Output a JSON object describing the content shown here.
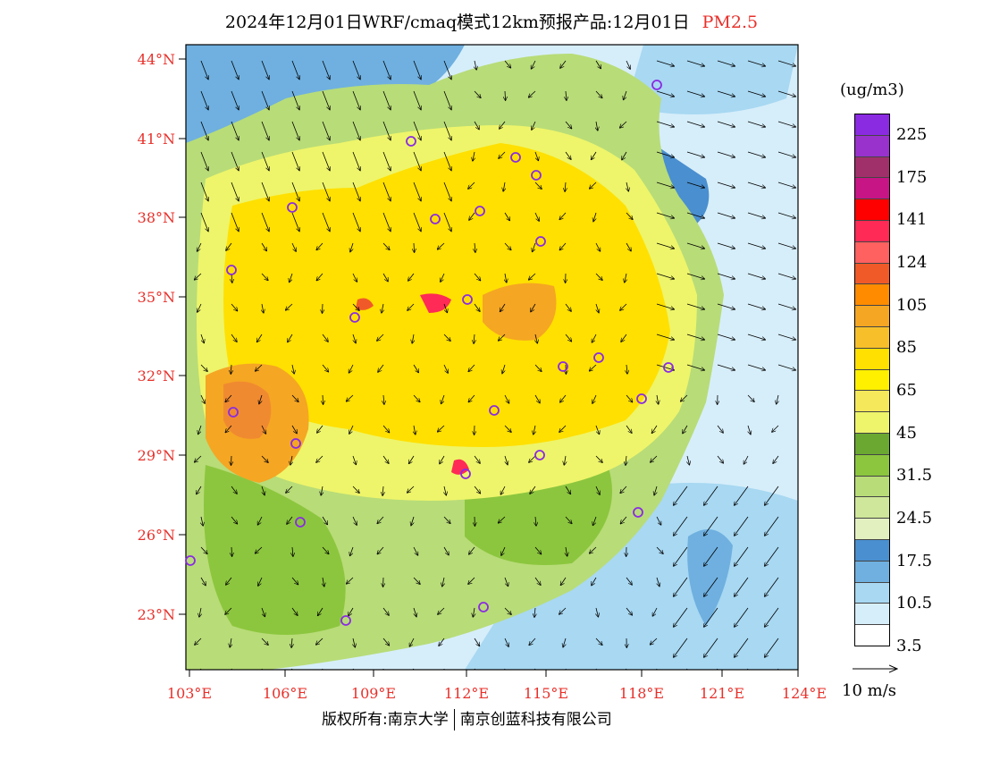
{
  "title": {
    "main": "2024年12月01日WRF/cmaq模式12km预报产品:12月01日",
    "pollutant": "PM2.5"
  },
  "axes": {
    "lat_labels": [
      "44°N",
      "41°N",
      "38°N",
      "35°N",
      "32°N",
      "29°N",
      "26°N",
      "23°N"
    ],
    "lon_labels": [
      "103°E",
      "106°E",
      "109°E",
      "112°E",
      "115°E",
      "118°E",
      "121°E",
      "124°E"
    ]
  },
  "legend": {
    "unit": "(ug/m3)",
    "labels": [
      "225",
      "175",
      "141",
      "124",
      "105",
      "85",
      "65",
      "45",
      "31.5",
      "24.5",
      "17.5",
      "10.5",
      "3.5"
    ],
    "colors": [
      "#8a2be2",
      "#9932cc",
      "#a0306a",
      "#c71585",
      "#ff0000",
      "#ff2a55",
      "#ff6060",
      "#f05a28",
      "#ff8c00",
      "#f5a623",
      "#f7c02a",
      "#ffe000",
      "#fff000",
      "#f5e85a",
      "#eef56a",
      "#6aa832",
      "#8cc63e",
      "#b8dc78",
      "#cfe79a",
      "#e2f0c0",
      "#4a8fcf",
      "#6fb0e0",
      "#a8d8f2",
      "#d6eefa",
      "#ffffff"
    ]
  },
  "wind_vector": {
    "label": "10 m/s"
  },
  "footer": {
    "left": "版权所有:南京大学",
    "right": "南京创蓝科技有限公司"
  },
  "map_colors": {
    "sea_light": "#d6eefa",
    "sea_mid": "#a8d8f2",
    "sea_deep": "#4a8fcf",
    "green": "#8cc63e",
    "light_green": "#b8dc78",
    "yellow": "#ffe000",
    "pale_yellow": "#f5e85a",
    "orange": "#f5a623",
    "dark_orange": "#f08a30",
    "red": "#ff2a55",
    "station_ring": "#8a2be2"
  }
}
